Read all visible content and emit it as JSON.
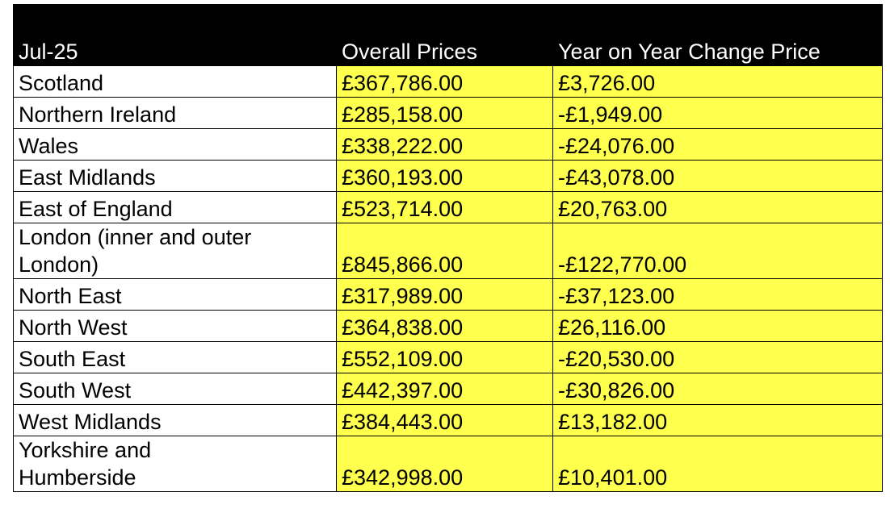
{
  "table": {
    "header": [
      "Jul-25",
      "Overall Prices",
      "Year on Year Change Price"
    ],
    "rows": [
      [
        "Scotland",
        "£367,786.00",
        "£3,726.00"
      ],
      [
        "Northern Ireland",
        "£285,158.00",
        "-£1,949.00"
      ],
      [
        "Wales",
        "£338,222.00",
        "-£24,076.00"
      ],
      [
        "East Midlands",
        "£360,193.00",
        "-£43,078.00"
      ],
      [
        "East of England",
        "£523,714.00",
        "£20,763.00"
      ],
      [
        "London (inner and outer London)",
        "£845,866.00",
        "-£122,770.00"
      ],
      [
        "North East",
        "£317,989.00",
        "-£37,123.00"
      ],
      [
        "North West",
        "£364,838.00",
        "£26,116.00"
      ],
      [
        "South East",
        "£552,109.00",
        "-£20,530.00"
      ],
      [
        "South West",
        "£442,397.00",
        "-£30,826.00"
      ],
      [
        "West Midlands",
        "£384,443.00",
        "£13,182.00"
      ],
      [
        "Yorkshire and Humberside",
        "£342,998.00",
        "£10,401.00"
      ]
    ]
  }
}
